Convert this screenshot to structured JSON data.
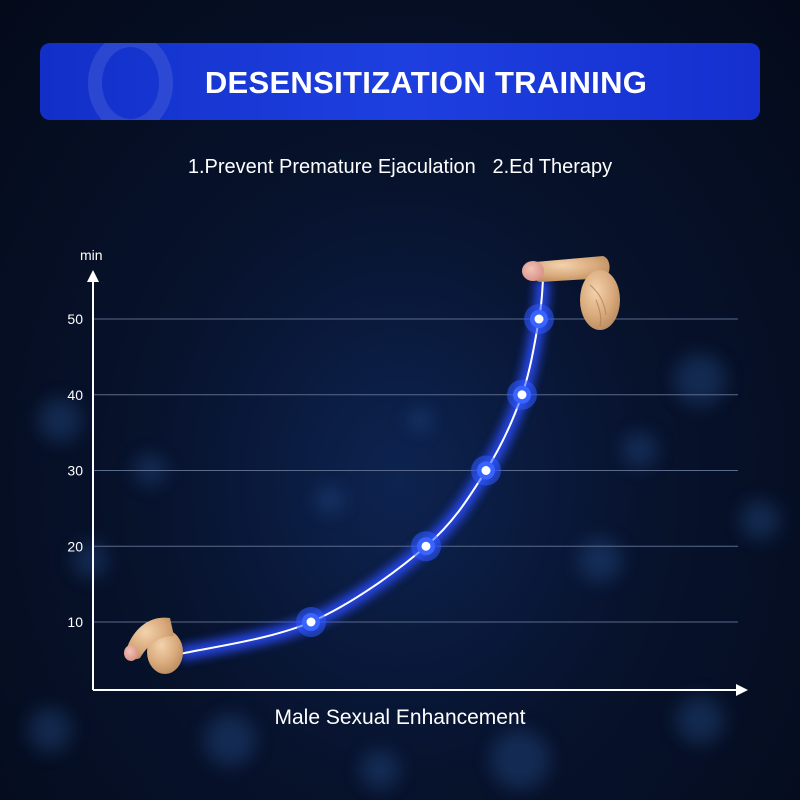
{
  "header": {
    "title": "DESENSITIZATION TRAINING",
    "subtitle": "1.Prevent Premature Ejaculation   2.Ed Therapy"
  },
  "chart_data": {
    "type": "line",
    "title": "",
    "xlabel": "Male Sexual Enhancement",
    "ylabel": "min",
    "ylim": [
      0,
      59
    ],
    "yticks": [
      10,
      20,
      30,
      40,
      50
    ],
    "grid": true,
    "series": [
      {
        "values": [
          10,
          20,
          30,
          40,
          50
        ]
      }
    ],
    "colors": {
      "line": "#ffffff",
      "glow": "#2b4dff",
      "marker_halo": "#2e58ff",
      "grid": "#5a6a8a",
      "axis": "#ffffff"
    },
    "illustrations": [
      "flaccid-illustration",
      "erect-illustration"
    ]
  }
}
